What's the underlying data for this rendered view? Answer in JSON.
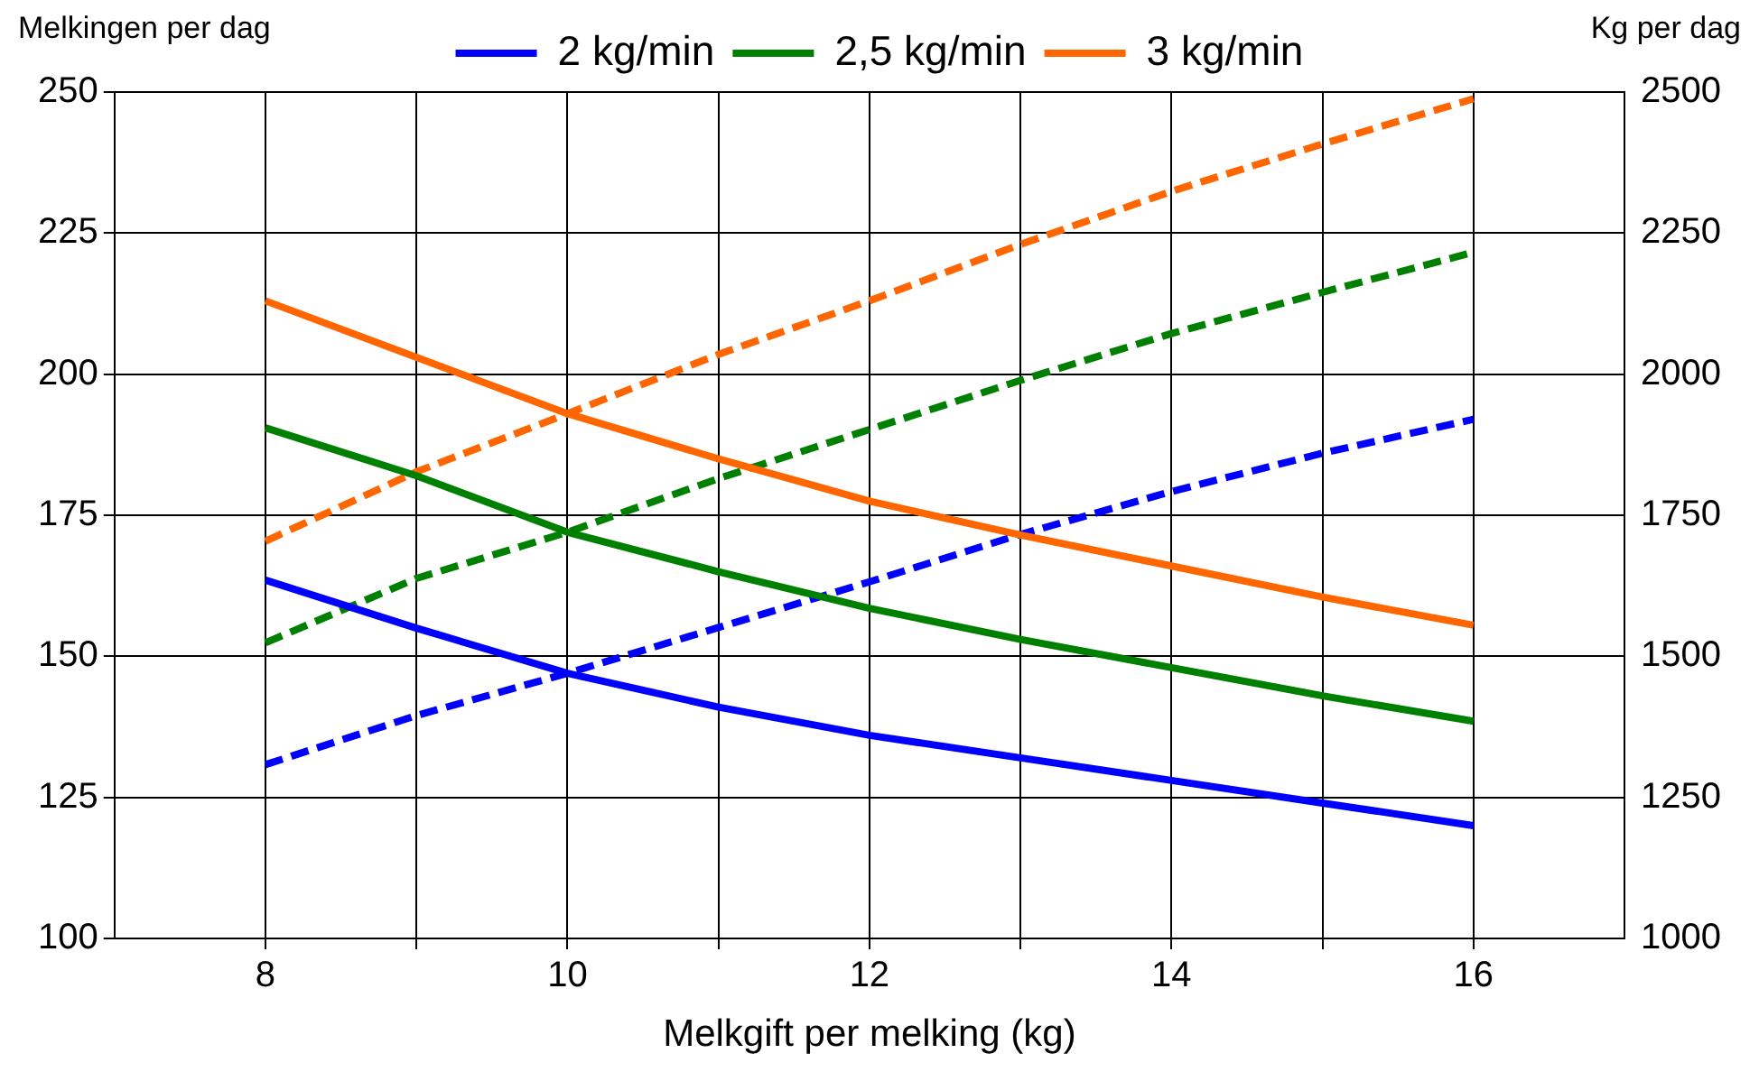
{
  "chart_data": {
    "type": "line",
    "xlabel": "Melkgift per melking (kg)",
    "ylabel": "Melkingen per dag",
    "y2label": "Kg per dag",
    "x": [
      8,
      9,
      10,
      11,
      12,
      13,
      14,
      15,
      16
    ],
    "series": [
      {
        "name": "2 kg/min",
        "color": "#0000ff",
        "line_style": "solid",
        "values": [
          163.5,
          155,
          147,
          141,
          136,
          132,
          128,
          124,
          120
        ]
      },
      {
        "name": "2,5 kg/min",
        "color": "#008000",
        "line_style": "solid",
        "values": [
          190.5,
          182,
          172,
          165,
          158.5,
          153,
          148,
          143,
          138.5
        ]
      },
      {
        "name": "3 kg/min",
        "color": "#ff6600",
        "line_style": "solid",
        "values": [
          213,
          203,
          193,
          185,
          177.5,
          171.5,
          166,
          160.5,
          155.5
        ]
      },
      {
        "color": "#0000ff",
        "line_style": "dashed",
        "axis": "y2",
        "values": [
          1308,
          1395,
          1470,
          1551,
          1632,
          1716,
          1792,
          1860,
          1920
        ]
      },
      {
        "color": "#008000",
        "line_style": "dashed",
        "axis": "y2",
        "values": [
          1524,
          1638,
          1720,
          1815,
          1902,
          1989,
          2072,
          2145,
          2216
        ]
      },
      {
        "color": "#ff6600",
        "line_style": "dashed",
        "axis": "y2",
        "values": [
          1704,
          1827,
          1930,
          2035,
          2130,
          2230,
          2324,
          2408,
          2488
        ]
      }
    ],
    "xlim": [
      7,
      17
    ],
    "xticks": [
      8,
      {
        "value": 9,
        "label": null
      },
      10,
      {
        "value": 11,
        "label": null
      },
      12,
      {
        "value": 13,
        "label": null
      },
      14,
      {
        "value": 15,
        "label": null
      },
      16
    ],
    "ylim": [
      100,
      250
    ],
    "yticks": [
      100,
      125,
      150,
      175,
      200,
      225,
      250
    ],
    "y2lim": [
      1000,
      2500
    ],
    "y2ticks": [
      1000,
      1250,
      1500,
      1750,
      2000,
      2250,
      2500
    ],
    "grid": true,
    "legend": "top",
    "marker": "none"
  }
}
